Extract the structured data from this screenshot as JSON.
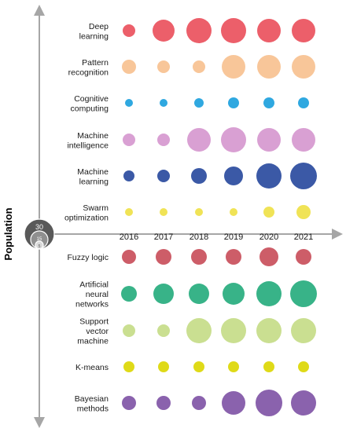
{
  "chart_data": {
    "type": "bubble",
    "x_axis": {
      "ticks": [
        "2016",
        "2017",
        "2018",
        "2019",
        "2020",
        "2021"
      ]
    },
    "y_axis_label": "Population",
    "size_legend": {
      "values": [
        "30",
        "15",
        "5"
      ]
    },
    "series": [
      {
        "name": "Deep\nlearning",
        "color": "#ec5f6a",
        "values": [
          8,
          14,
          16,
          16,
          15,
          15
        ]
      },
      {
        "name": "Pattern\nrecognition",
        "color": "#f8c699",
        "values": [
          9,
          8,
          8,
          15,
          15,
          15
        ]
      },
      {
        "name": "Cognitive\ncomputing",
        "color": "#2fa8e0",
        "values": [
          5,
          5,
          6,
          7,
          7,
          7
        ]
      },
      {
        "name": "Machine\nintelligence",
        "color": "#d9a0d3",
        "values": [
          8,
          8,
          15,
          16,
          15,
          15
        ]
      },
      {
        "name": "Machine\nlearning",
        "color": "#3b59a6",
        "values": [
          7,
          8,
          10,
          12,
          16,
          17
        ]
      },
      {
        "name": "Swarm\noptimization",
        "color": "#f0e356",
        "values": [
          5,
          5,
          5,
          5,
          7,
          9
        ]
      },
      {
        "name": "Fuzzy logic",
        "color": "#cd5d68",
        "values": [
          9,
          10,
          10,
          10,
          12,
          10
        ]
      },
      {
        "name": "Artificial\nneural\nnetworks",
        "color": "#38b388",
        "values": [
          10,
          13,
          13,
          14,
          16,
          17
        ]
      },
      {
        "name": "Support\nvector\nmachine",
        "color": "#cadf91",
        "values": [
          8,
          8,
          16,
          16,
          16,
          16
        ]
      },
      {
        "name": "K-means",
        "color": "#dfda18",
        "values": [
          7,
          7,
          7,
          7,
          7,
          7
        ]
      },
      {
        "name": "Bayesian\nmethods",
        "color": "#8a62ad",
        "values": [
          9,
          9,
          9,
          15,
          17,
          16
        ]
      }
    ]
  }
}
